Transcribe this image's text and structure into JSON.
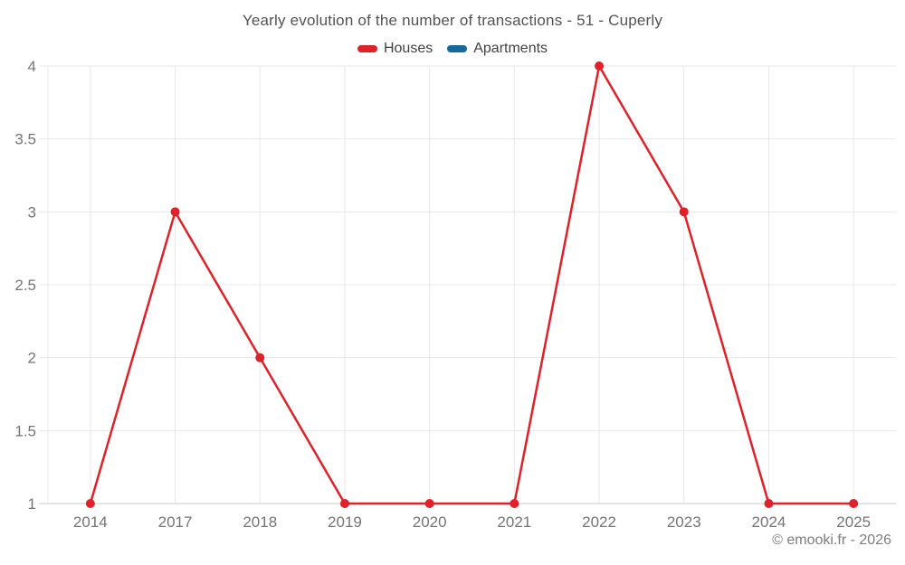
{
  "chart": {
    "title": "Yearly evolution of the number of transactions - 51 - Cuperly"
  },
  "watermark": {
    "text": "© emooki.fr - 2026"
  },
  "colors": {
    "houses": "#e02128",
    "apartments": "#15699e",
    "grid": "#e8e8e8",
    "axis_line": "#c9c9c9",
    "tick_label": "#757575",
    "title_text": "#535353",
    "legend_text": "#424242",
    "watermark_text": "#7d7d7d",
    "background": "#ffffff"
  },
  "chart_data": {
    "type": "line",
    "title": "Yearly evolution of the number of transactions - 51 - Cuperly",
    "categories": [
      "2014",
      "2017",
      "2018",
      "2019",
      "2020",
      "2021",
      "2022",
      "2023",
      "2024",
      "2025"
    ],
    "series": [
      {
        "name": "Houses",
        "color": "#e02128",
        "values": [
          1,
          3,
          2,
          1,
          1,
          1,
          4,
          3,
          1,
          1
        ]
      },
      {
        "name": "Apartments",
        "color": "#15699e",
        "values": []
      }
    ],
    "xlabel": "",
    "ylabel": "",
    "ylim": [
      1,
      4
    ],
    "ytick_step": 0.5,
    "grid": true,
    "legend_position": "top"
  }
}
